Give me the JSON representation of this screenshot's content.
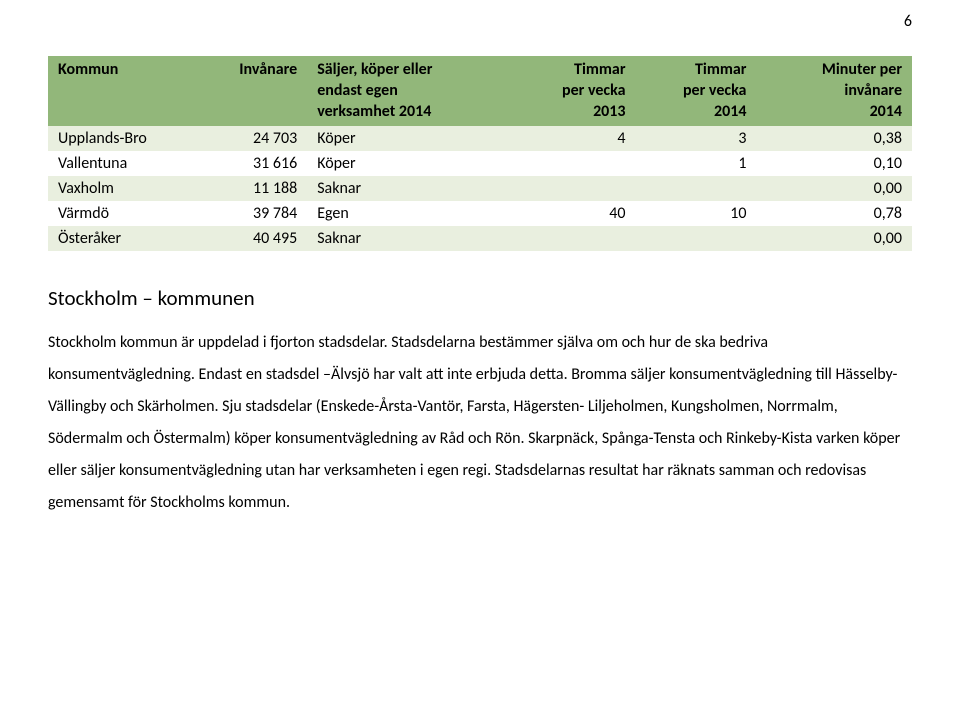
{
  "page_number": "6",
  "table": {
    "header_bg": "#92b77a",
    "row_odd_bg": "#e9efdf",
    "row_even_bg": "#ffffff",
    "columns": [
      {
        "lines": [
          "Kommun"
        ],
        "align": "left",
        "width": "18%"
      },
      {
        "lines": [
          "Invånare"
        ],
        "align": "right",
        "width": "12%"
      },
      {
        "lines": [
          "Säljer, köper eller",
          "endast egen",
          "verksamhet 2014"
        ],
        "align": "left",
        "width": "24%"
      },
      {
        "lines": [
          "Timmar",
          "per vecka",
          "2013"
        ],
        "align": "right",
        "width": "14%"
      },
      {
        "lines": [
          "Timmar",
          "per vecka",
          "2014"
        ],
        "align": "right",
        "width": "14%"
      },
      {
        "lines": [
          "Minuter per",
          "invånare",
          "2014"
        ],
        "align": "right",
        "width": "18%"
      }
    ],
    "rows": [
      [
        "Upplands-Bro",
        "24 703",
        "Köper",
        "4",
        "3",
        "0,38"
      ],
      [
        "Vallentuna",
        "31 616",
        "Köper",
        "",
        "1",
        "0,10"
      ],
      [
        "Vaxholm",
        "11 188",
        "Saknar",
        "",
        "",
        "0,00"
      ],
      [
        "Värmdö",
        "39 784",
        "Egen",
        "40",
        "10",
        "0,78"
      ],
      [
        "Österåker",
        "40 495",
        "Saknar",
        "",
        "",
        "0,00"
      ]
    ]
  },
  "section_heading": "Stockholm – kommunen",
  "paragraph": "Stockholm kommun är uppdelad i fjorton stadsdelar. Stadsdelarna bestämmer själva om och hur de ska bedriva konsumentvägledning. Endast en stadsdel –Älvsjö har valt att inte erbjuda detta. Bromma säljer konsumentvägledning till Hässelby- Vällingby och Skärholmen. Sju stadsdelar (Enskede-Årsta-Vantör, Farsta, Hägersten- Liljeholmen, Kungsholmen, Norrmalm, Södermalm och Östermalm) köper konsumentvägledning av Råd och Rön. Skarpnäck, Spånga-Tensta och Rinkeby-Kista varken köper eller säljer konsumentvägledning utan har verksamheten i egen regi. Stadsdelarnas resultat har räknats samman och redovisas gemensamt för Stockholms kommun."
}
